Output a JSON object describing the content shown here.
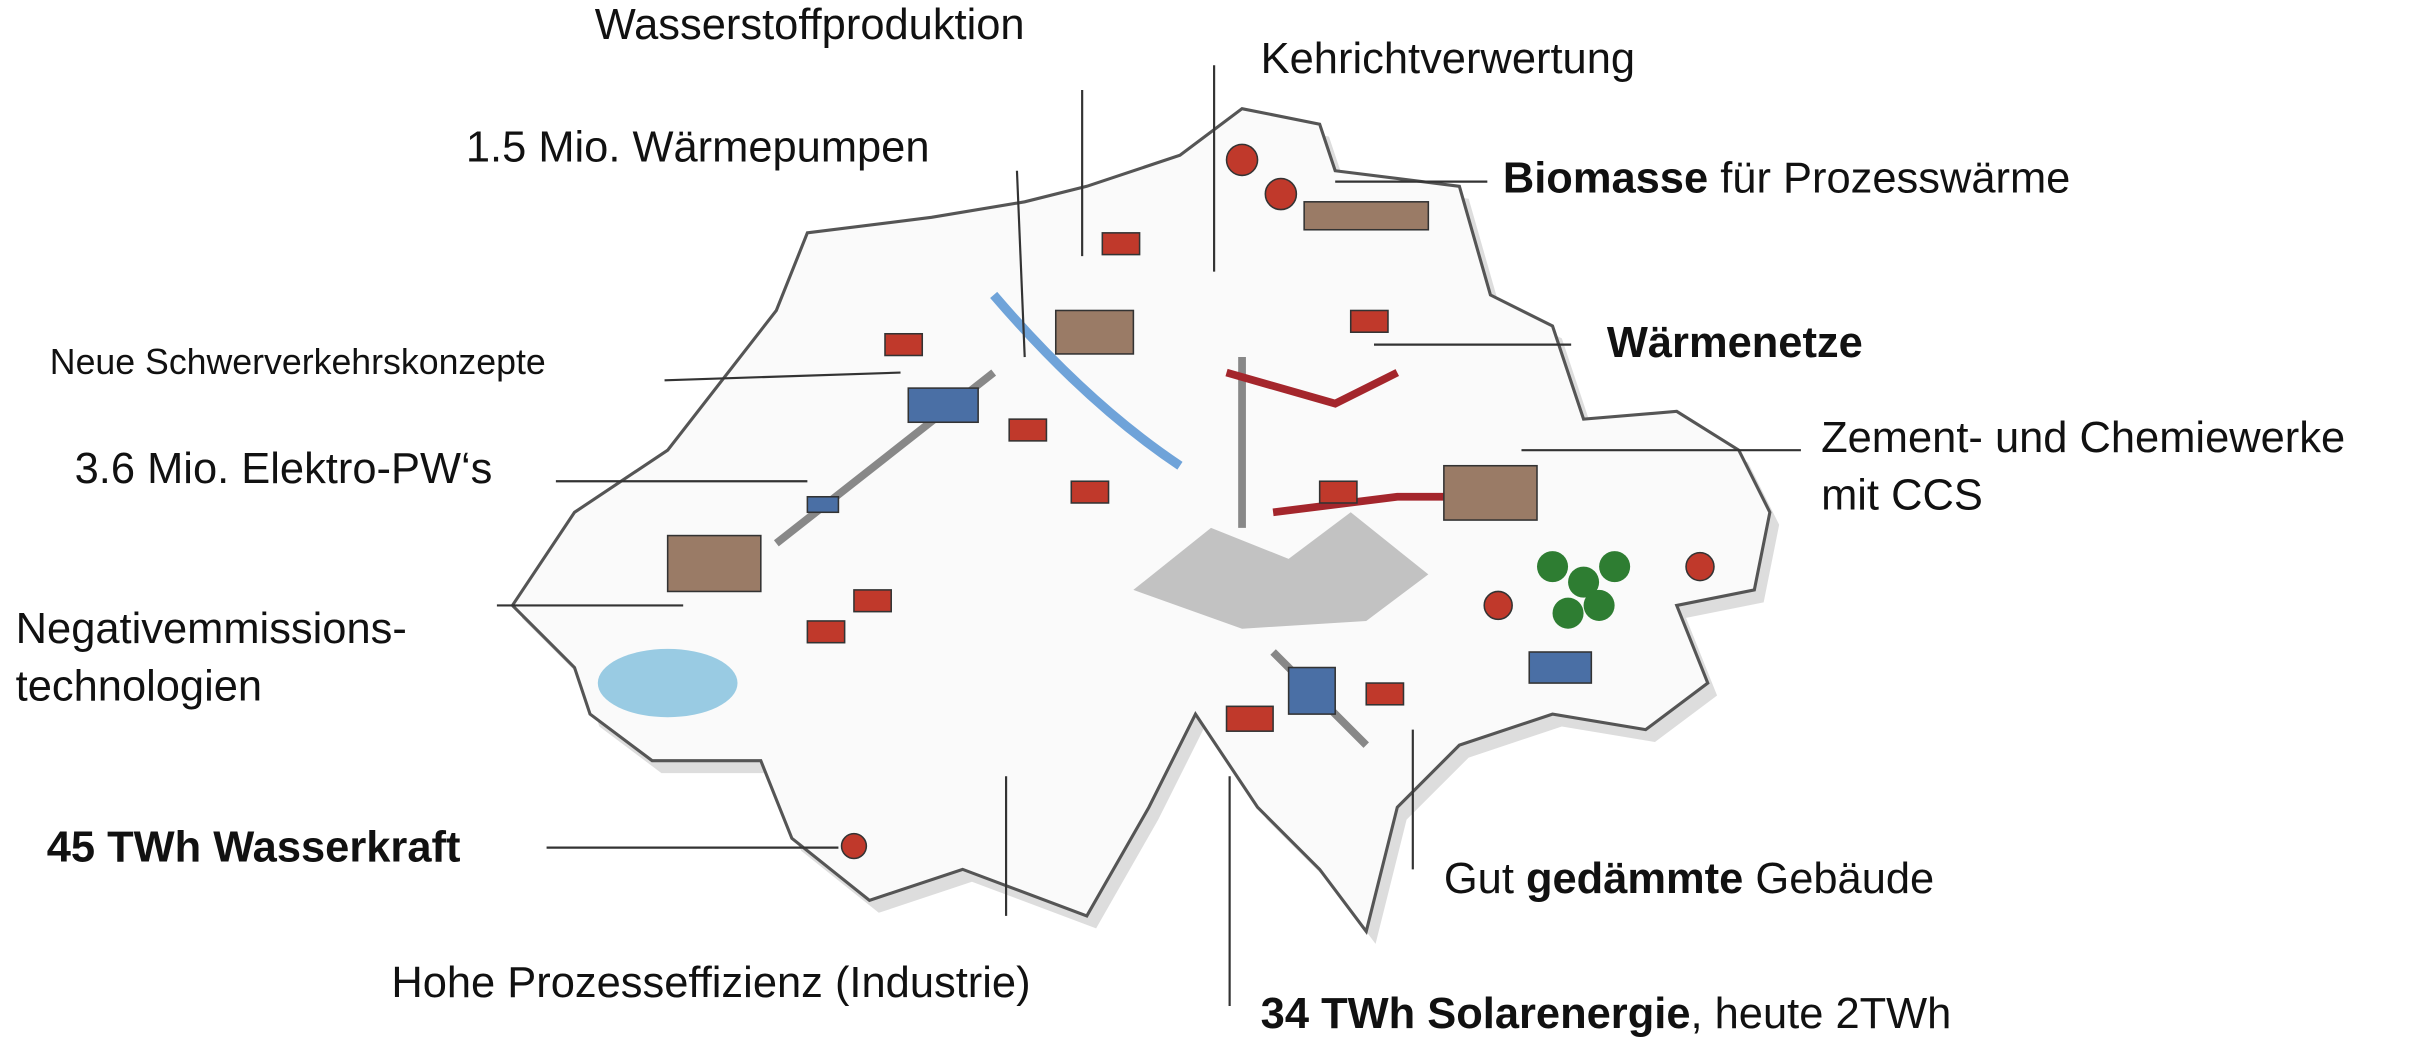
{
  "labels": [
    {
      "lines": [
        [
          {
            "text": "Wasserstoffproduktion",
            "bold": false
          }
        ]
      ]
    },
    {
      "lines": [
        [
          {
            "text": "Kehrichtverwertung",
            "bold": false
          }
        ]
      ]
    },
    {
      "lines": [
        [
          {
            "text": "1.5 Mio. Wärmepumpen",
            "bold": false
          }
        ]
      ]
    },
    {
      "lines": [
        [
          {
            "text": "Biomasse",
            "bold": true
          },
          {
            "text": " für Prozesswärme",
            "bold": false
          }
        ]
      ]
    },
    {
      "lines": [
        [
          {
            "text": "Neue Schwerverkehrskonzepte",
            "bold": false
          }
        ]
      ]
    },
    {
      "lines": [
        [
          {
            "text": "Wärmenetze",
            "bold": true
          }
        ]
      ]
    },
    {
      "lines": [
        [
          {
            "text": "Zement- und Chemiewerke",
            "bold": false
          }
        ],
        [
          {
            "text": "mit CCS",
            "bold": false
          }
        ]
      ]
    },
    {
      "lines": [
        [
          {
            "text": "3.6 Mio. Elektro-PW‘s",
            "bold": false
          }
        ]
      ]
    },
    {
      "lines": [
        [
          {
            "text": "Negativemmissions-",
            "bold": false
          }
        ],
        [
          {
            "text": "technologien",
            "bold": false
          }
        ]
      ]
    },
    {
      "lines": [
        [
          {
            "text": "45 TWh Wasserkraft",
            "bold": true
          }
        ]
      ]
    },
    {
      "lines": [
        [
          {
            "text": "Gut ",
            "bold": false
          },
          {
            "text": "gedämmte",
            "bold": true
          },
          {
            "text": " Gebäude",
            "bold": false
          }
        ]
      ]
    },
    {
      "lines": [
        [
          {
            "text": "Hohe Prozesseffizienz (Industrie)",
            "bold": false
          }
        ]
      ]
    },
    {
      "lines": [
        [
          {
            "text": "34 TWh Solarenergie",
            "bold": true
          },
          {
            "text": ", heute 2TWh",
            "bold": false
          }
        ]
      ]
    }
  ]
}
